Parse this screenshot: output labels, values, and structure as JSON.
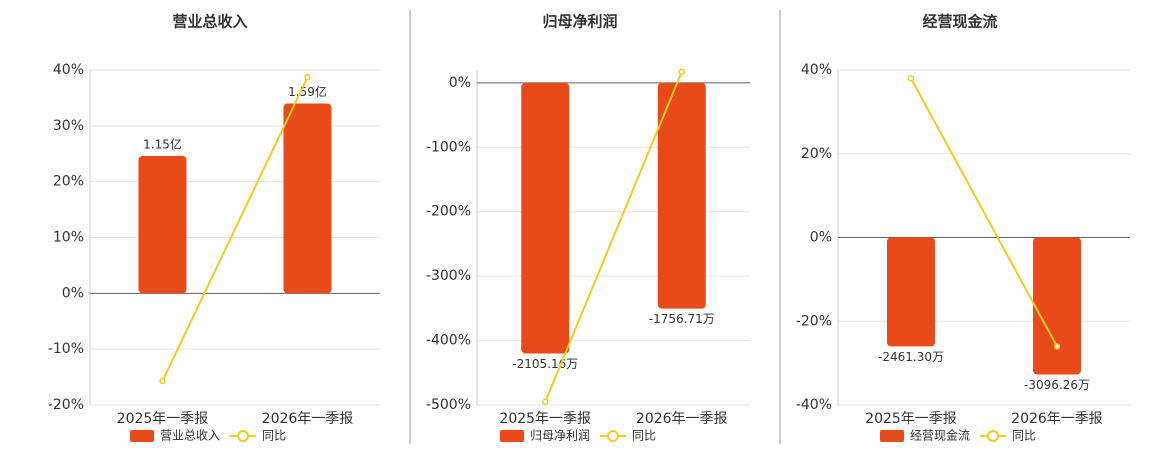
{
  "chart_data": [
    {
      "type": "bar",
      "title": "营业总收入",
      "categories": [
        "2025年一季报",
        "2026年一季报"
      ],
      "ylim": [
        -20,
        40
      ],
      "yticks": [
        {
          "value": -20,
          "label": "-20%"
        },
        {
          "value": -10,
          "label": "-10%"
        },
        {
          "value": 0,
          "label": "0%"
        },
        {
          "value": 10,
          "label": "10%"
        },
        {
          "value": 20,
          "label": "20%"
        },
        {
          "value": 30,
          "label": "30%"
        },
        {
          "value": 40,
          "label": "40%"
        }
      ],
      "y2lim": [
        -0.935,
        1.87
      ],
      "grid": true,
      "series": [
        {
          "name": "营业总收入",
          "type": "bar",
          "axis": "y2",
          "color": "#e84a1a",
          "values": [
            1.15,
            1.59
          ],
          "value_labels": [
            "1.15亿",
            "1.59亿"
          ]
        },
        {
          "name": "同比",
          "type": "line",
          "color": "#f2cd1a",
          "values": [
            -15.7,
            38.7
          ]
        }
      ]
    },
    {
      "type": "bar",
      "title": "归母净利润",
      "categories": [
        "2025年一季报",
        "2026年一季报"
      ],
      "ylim": [
        -500,
        20
      ],
      "yticks": [
        {
          "value": -500,
          "label": "-500%"
        },
        {
          "value": -400,
          "label": "-400%"
        },
        {
          "value": -300,
          "label": "-300%"
        },
        {
          "value": -200,
          "label": "-200%"
        },
        {
          "value": -100,
          "label": "-100%"
        },
        {
          "value": 0,
          "label": "0%"
        }
      ],
      "y2lim": [
        -2506,
        100
      ],
      "grid": true,
      "series": [
        {
          "name": "归母净利润",
          "type": "bar",
          "axis": "y2",
          "color": "#e84a1a",
          "values": [
            -2105.16,
            -1756.71
          ],
          "value_labels": [
            "-2105.16万",
            "-1756.71万"
          ]
        },
        {
          "name": "同比",
          "type": "line",
          "color": "#f2cd1a",
          "values": [
            -495,
            17
          ]
        }
      ]
    },
    {
      "type": "bar",
      "title": "经营现金流",
      "categories": [
        "2025年一季报",
        "2026年一季报"
      ],
      "ylim": [
        -40,
        40
      ],
      "yticks": [
        {
          "value": -40,
          "label": "-40%"
        },
        {
          "value": -20,
          "label": "-20%"
        },
        {
          "value": 0,
          "label": "0%"
        },
        {
          "value": 20,
          "label": "20%"
        },
        {
          "value": 40,
          "label": "40%"
        }
      ],
      "y2lim": [
        -3787,
        3787
      ],
      "grid": true,
      "series": [
        {
          "name": "经营现金流",
          "type": "bar",
          "axis": "y2",
          "color": "#e84a1a",
          "values": [
            -2461.3,
            -3096.26
          ],
          "value_labels": [
            "-2461.30万",
            "-3096.26万"
          ]
        },
        {
          "name": "同比",
          "type": "line",
          "color": "#f2cd1a",
          "values": [
            38,
            -26
          ]
        }
      ]
    }
  ]
}
